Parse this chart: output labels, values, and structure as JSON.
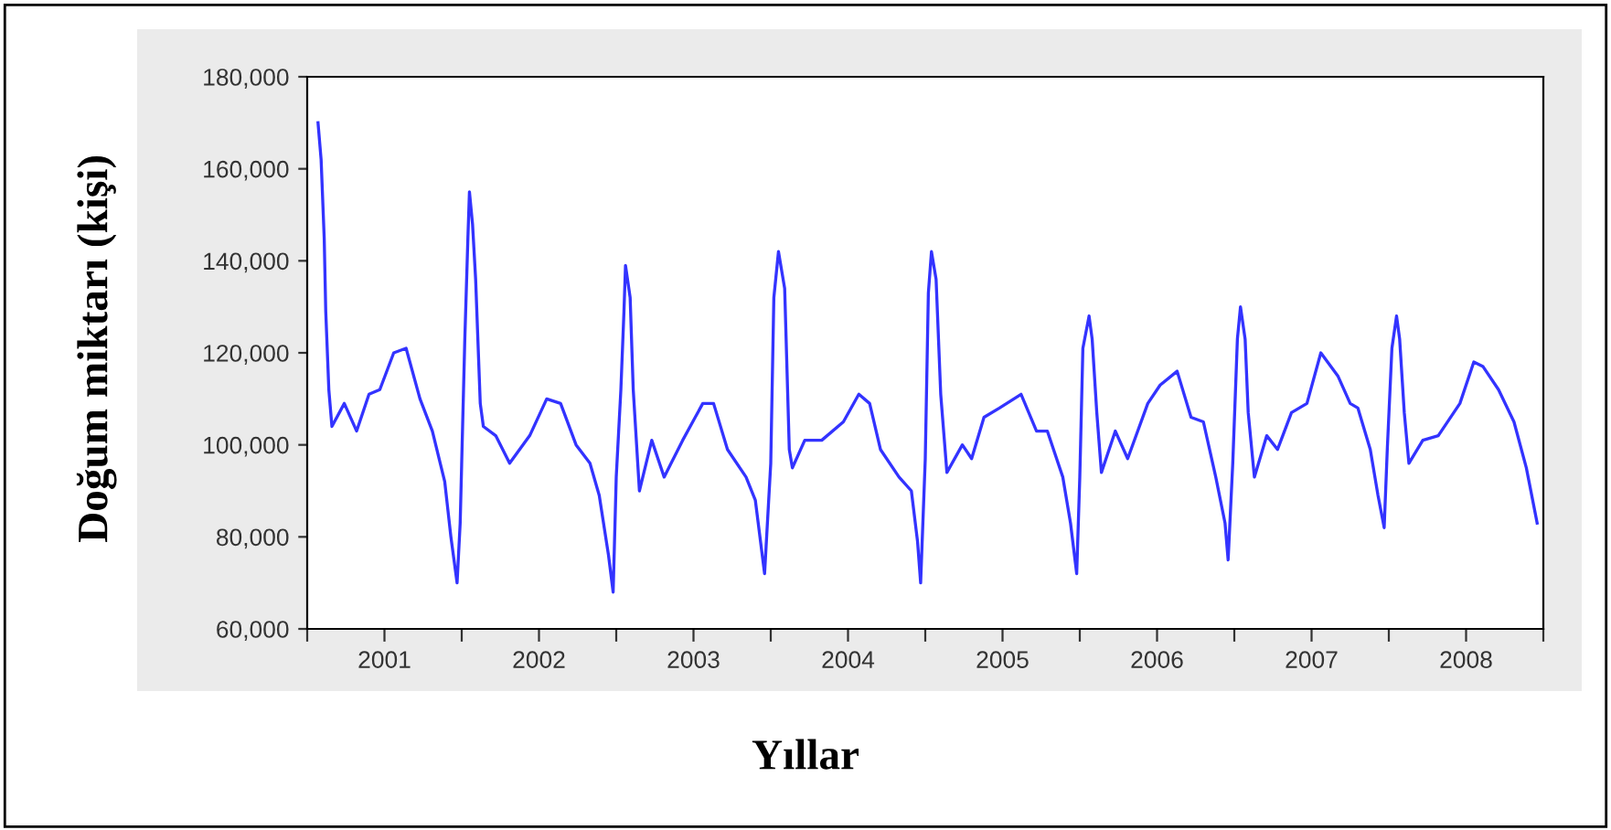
{
  "chart_data": {
    "type": "line",
    "xlabel": "Yıllar",
    "ylabel": "Doğum miktarı (kişi)",
    "x": [
      2001.07,
      2001.09,
      2001.11,
      2001.12,
      2001.14,
      2001.16,
      2001.24,
      2001.32,
      2001.4,
      2001.47,
      2001.56,
      2001.64,
      2001.73,
      2001.81,
      2001.89,
      2001.93,
      2001.97,
      2001.99,
      2002.02,
      2002.04,
      2002.05,
      2002.07,
      2002.09,
      2002.12,
      2002.14,
      2002.22,
      2002.31,
      2002.44,
      2002.55,
      2002.64,
      2002.74,
      2002.83,
      2002.89,
      2002.95,
      2002.98,
      2003.0,
      2003.03,
      2003.05,
      2003.06,
      2003.09,
      2003.11,
      2003.15,
      2003.23,
      2003.31,
      2003.43,
      2003.56,
      2003.63,
      2003.72,
      2003.84,
      2003.9,
      2003.96,
      2004.0,
      2004.02,
      2004.05,
      2004.09,
      2004.12,
      2004.14,
      2004.22,
      2004.33,
      2004.47,
      2004.57,
      2004.64,
      2004.71,
      2004.83,
      2004.91,
      2004.95,
      2004.97,
      2005.0,
      2005.02,
      2005.04,
      2005.07,
      2005.1,
      2005.14,
      2005.24,
      2005.3,
      2005.38,
      2005.48,
      2005.62,
      2005.72,
      2005.79,
      2005.89,
      2005.94,
      2005.98,
      2006.0,
      2006.02,
      2006.06,
      2006.08,
      2006.11,
      2006.14,
      2006.23,
      2006.31,
      2006.44,
      2006.52,
      2006.63,
      2006.72,
      2006.8,
      2006.88,
      2006.94,
      2006.96,
      2006.99,
      2007.02,
      2007.04,
      2007.07,
      2007.09,
      2007.13,
      2007.21,
      2007.28,
      2007.37,
      2007.47,
      2007.56,
      2007.67,
      2007.75,
      2007.8,
      2007.88,
      2007.93,
      2007.97,
      2007.99,
      2008.02,
      2008.05,
      2008.07,
      2008.1,
      2008.13,
      2008.22,
      2008.32,
      2008.46,
      2008.55,
      2008.61,
      2008.71,
      2008.81,
      2008.89,
      2008.96
    ],
    "series": [
      {
        "color": "#3333ff",
        "values": [
          170000,
          162000,
          145000,
          129000,
          112000,
          104000,
          109000,
          103000,
          111000,
          112000,
          120000,
          121000,
          110000,
          103000,
          92000,
          80000,
          70000,
          83000,
          123000,
          145000,
          155000,
          148000,
          136000,
          109000,
          104000,
          102000,
          96000,
          102000,
          110000,
          109000,
          100000,
          96000,
          89000,
          76000,
          68000,
          93000,
          112000,
          129000,
          139000,
          132000,
          112000,
          90000,
          101000,
          93000,
          101000,
          109000,
          109000,
          99000,
          93000,
          88000,
          72000,
          96000,
          132000,
          142000,
          134000,
          99000,
          95000,
          101000,
          101000,
          105000,
          111000,
          109000,
          99000,
          93000,
          90000,
          79000,
          70000,
          97000,
          133000,
          142000,
          136000,
          111000,
          94000,
          100000,
          97000,
          106000,
          108000,
          111000,
          103000,
          103000,
          93000,
          83000,
          72000,
          93000,
          121000,
          128000,
          123000,
          107000,
          94000,
          103000,
          97000,
          109000,
          113000,
          116000,
          106000,
          105000,
          93000,
          83000,
          75000,
          96000,
          123000,
          130000,
          123000,
          107000,
          93000,
          102000,
          99000,
          107000,
          109000,
          120000,
          115000,
          109000,
          108000,
          99000,
          89000,
          82000,
          99000,
          121000,
          128000,
          123000,
          107000,
          96000,
          101000,
          102000,
          109000,
          118000,
          117000,
          112000,
          105000,
          95000,
          83000
        ]
      }
    ],
    "xlim": [
      2001,
      2009
    ],
    "ylim": [
      60000,
      180000
    ],
    "yticks": [
      {
        "value": 60000,
        "label": "60,000"
      },
      {
        "value": 80000,
        "label": "80,000"
      },
      {
        "value": 100000,
        "label": "100,000"
      },
      {
        "value": 120000,
        "label": "120,000"
      },
      {
        "value": 140000,
        "label": "140,000"
      },
      {
        "value": 160000,
        "label": "160,000"
      },
      {
        "value": 180000,
        "label": "180,000"
      }
    ],
    "xticks": [
      {
        "value": 2001.5,
        "label": "2001"
      },
      {
        "value": 2002.5,
        "label": "2002"
      },
      {
        "value": 2003.5,
        "label": "2003"
      },
      {
        "value": 2004.5,
        "label": "2004"
      },
      {
        "value": 2005.5,
        "label": "2005"
      },
      {
        "value": 2006.5,
        "label": "2006"
      },
      {
        "value": 2007.5,
        "label": "2007"
      },
      {
        "value": 2008.5,
        "label": "2008"
      },
      {
        "value": 2001,
        "label": null
      },
      {
        "value": 2002,
        "label": null
      },
      {
        "value": 2003,
        "label": null
      },
      {
        "value": 2004,
        "label": null
      },
      {
        "value": 2005,
        "label": null
      },
      {
        "value": 2006,
        "label": null
      },
      {
        "value": 2007,
        "label": null
      },
      {
        "value": 2008,
        "label": null
      },
      {
        "value": 2009,
        "label": null
      }
    ],
    "grid": false,
    "marker": "none",
    "line_style": "solid"
  }
}
